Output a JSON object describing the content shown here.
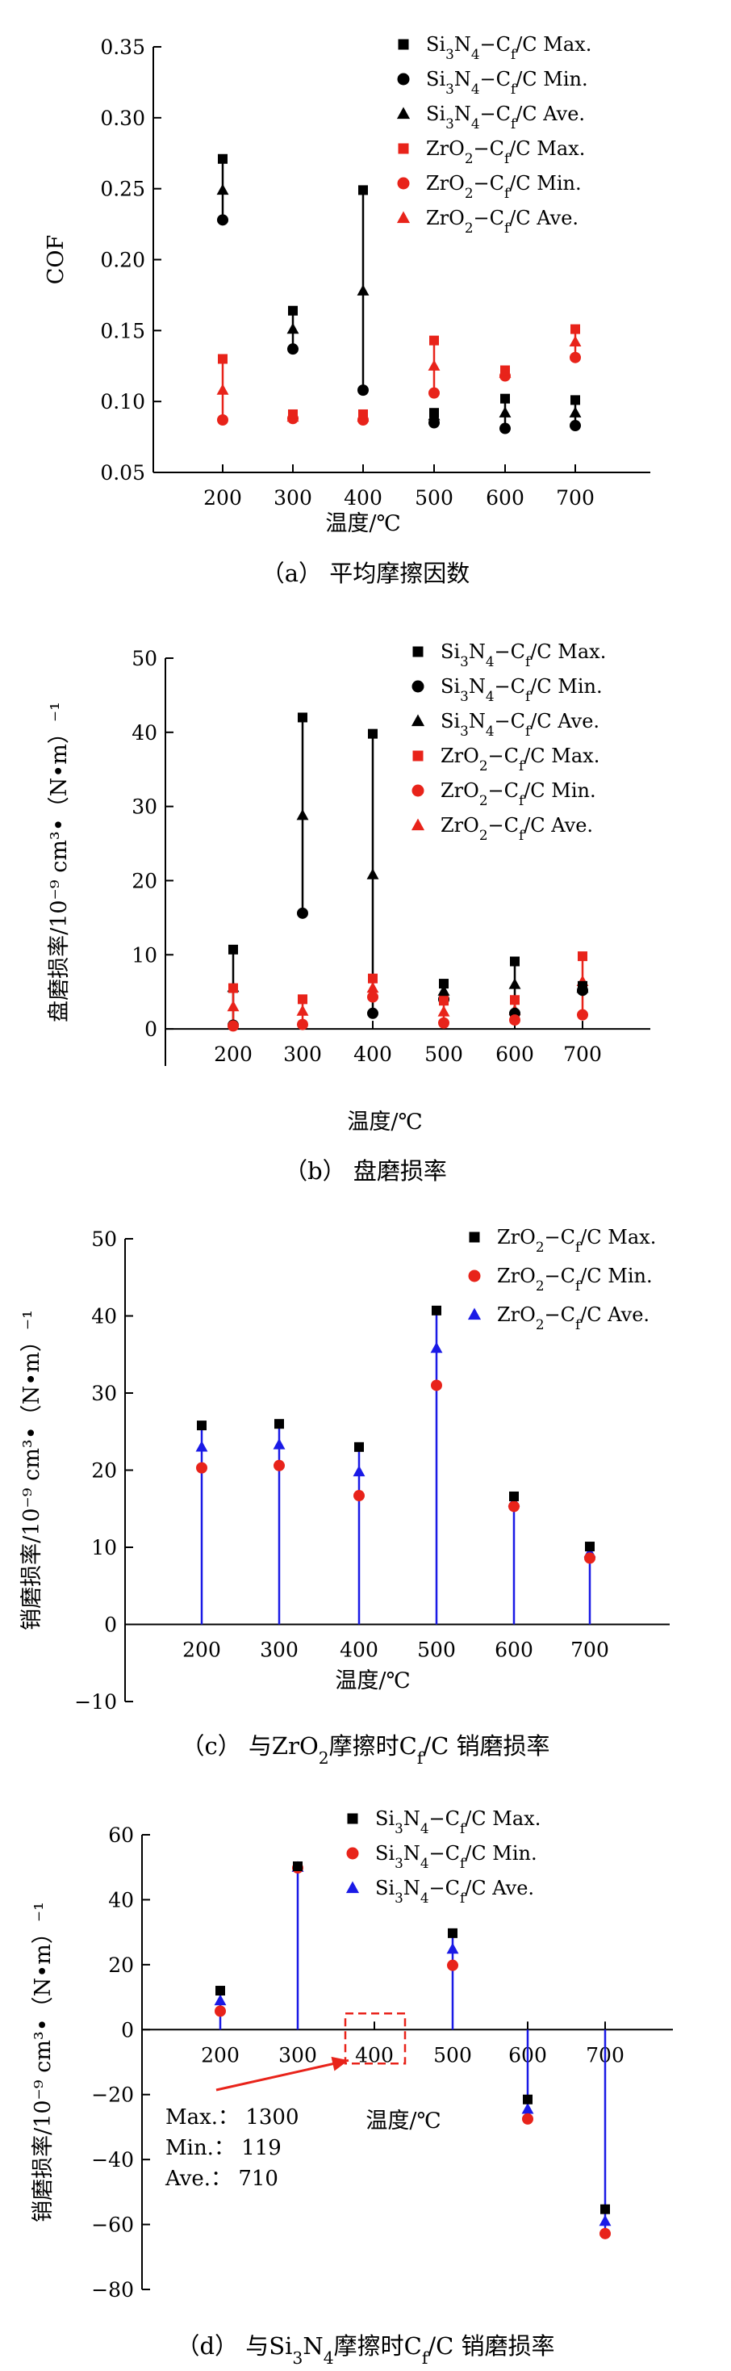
{
  "chart_data": [
    {
      "id": "a",
      "type": "scatter",
      "caption": "（a）  平均摩擦因数",
      "xlabel": "温度/℃",
      "ylabel": "COF",
      "categories": [
        "200",
        "300",
        "400",
        "500",
        "600",
        "700"
      ],
      "ylim": [
        0.05,
        0.35
      ],
      "yticks": [
        "0.05",
        "0.10",
        "0.15",
        "0.20",
        "0.25",
        "0.30",
        "0.35"
      ],
      "legend_position": "top-right",
      "series": [
        {
          "name": "Si₃N₄−C_f/C Max.",
          "marker": "square",
          "color": "#000000",
          "values": [
            0.271,
            0.164,
            0.249,
            0.092,
            0.102,
            0.101
          ]
        },
        {
          "name": "Si₃N₄−C_f/C Min.",
          "marker": "circle",
          "color": "#000000",
          "values": [
            0.228,
            0.137,
            0.108,
            0.085,
            0.081,
            0.083
          ]
        },
        {
          "name": "Si₃N₄−C_f/C Ave.",
          "marker": "triangle",
          "color": "#000000",
          "values": [
            0.249,
            0.151,
            0.178,
            0.09,
            0.092,
            0.092
          ]
        },
        {
          "name": "ZrO₂−C_f/C Max.",
          "marker": "square",
          "color": "#e8231a",
          "values": [
            0.13,
            0.091,
            0.091,
            0.143,
            0.122,
            0.151
          ]
        },
        {
          "name": "ZrO₂−C_f/C Min.",
          "marker": "circle",
          "color": "#e8231a",
          "values": [
            0.087,
            0.088,
            0.087,
            0.106,
            0.118,
            0.131
          ]
        },
        {
          "name": "ZrO₂−C_f/C Ave.",
          "marker": "triangle",
          "color": "#e8231a",
          "values": [
            0.108,
            0.089,
            0.089,
            0.125,
            0.12,
            0.142
          ]
        }
      ]
    },
    {
      "id": "b",
      "type": "scatter",
      "caption": "（b）  盘磨损率",
      "xlabel": "温度/℃",
      "ylabel": "盘磨损率/10⁻⁹ cm³•（N•m）⁻¹",
      "categories": [
        "200",
        "300",
        "400",
        "500",
        "600",
        "700"
      ],
      "ylim": [
        -5,
        50
      ],
      "yticks": [
        "0",
        "10",
        "20",
        "30",
        "40",
        "50"
      ],
      "legend_position": "top-right",
      "series": [
        {
          "name": "Si₃N₄−C_f/C Max.",
          "marker": "square",
          "color": "#000000",
          "values": [
            10.7,
            42.0,
            39.8,
            6.1,
            9.1,
            5.8
          ]
        },
        {
          "name": "Si₃N₄−C_f/C Min.",
          "marker": "circle",
          "color": "#000000",
          "values": [
            0.5,
            15.6,
            2.1,
            4.0,
            2.1,
            5.2
          ]
        },
        {
          "name": "Si₃N₄−C_f/C Ave.",
          "marker": "triangle",
          "color": "#000000",
          "values": [
            5.6,
            28.8,
            20.8,
            5.1,
            6.0,
            5.5
          ]
        },
        {
          "name": "ZrO₂−C_f/C Max.",
          "marker": "square",
          "color": "#e8231a",
          "values": [
            5.5,
            4.0,
            6.8,
            3.8,
            3.9,
            9.8
          ]
        },
        {
          "name": "ZrO₂−C_f/C Min.",
          "marker": "circle",
          "color": "#e8231a",
          "values": [
            0.4,
            0.6,
            4.3,
            0.8,
            1.2,
            1.9
          ]
        },
        {
          "name": "ZrO₂−C_f/C Ave.",
          "marker": "triangle",
          "color": "#e8231a",
          "values": [
            3.0,
            2.4,
            5.5,
            2.3,
            2.5,
            6.4
          ]
        }
      ]
    },
    {
      "id": "c",
      "type": "scatter",
      "caption": "（c）  与ZrO₂摩擦时C_f/C 销磨损率",
      "xlabel": "温度/℃",
      "ylabel": "销磨损率/10⁻⁹ cm³•（N•m）⁻¹",
      "categories": [
        "200",
        "300",
        "400",
        "500",
        "600",
        "700"
      ],
      "ylim": [
        -10,
        50
      ],
      "yticks": [
        "−10",
        "0",
        "10",
        "20",
        "30",
        "40",
        "50"
      ],
      "legend_position": "top-right",
      "series": [
        {
          "name": "ZrO₂−C_f/C Max.",
          "marker": "square",
          "color": "#000000",
          "values": [
            25.8,
            26.0,
            23.0,
            40.7,
            16.6,
            10.1
          ]
        },
        {
          "name": "ZrO₂−C_f/C Min.",
          "marker": "circle",
          "color": "#e8231a",
          "values": [
            20.3,
            20.6,
            16.7,
            31.0,
            15.3,
            8.6
          ]
        },
        {
          "name": "ZrO₂−C_f/C Ave.",
          "marker": "triangle",
          "color": "#1a1ae6",
          "values": [
            23.0,
            23.3,
            19.8,
            35.8,
            15.9,
            9.3
          ]
        }
      ]
    },
    {
      "id": "d",
      "type": "scatter",
      "caption": "（d）  与Si₃N₄摩擦时C_f/C 销磨损率",
      "xlabel": "温度/℃",
      "ylabel": "销磨损率/10⁻⁹ cm³•（N•m）⁻¹",
      "categories": [
        "200",
        "300",
        "400",
        "500",
        "600",
        "700"
      ],
      "ylim": [
        -80,
        60
      ],
      "yticks": [
        "−80",
        "−60",
        "−40",
        "−20",
        "0",
        "20",
        "40",
        "60"
      ],
      "legend_position": "top-center",
      "series": [
        {
          "name": "Si₃N₄−C_f/C Max.",
          "marker": "square",
          "color": "#000000",
          "values": [
            12.0,
            50.3,
            null,
            29.7,
            -21.5,
            -55.3
          ]
        },
        {
          "name": "Si₃N₄−C_f/C Min.",
          "marker": "circle",
          "color": "#e8231a",
          "values": [
            5.7,
            49.8,
            null,
            19.8,
            -27.5,
            -62.8
          ]
        },
        {
          "name": "Si₃N₄−C_f/C Ave.",
          "marker": "triangle",
          "color": "#1a1ae6",
          "values": [
            8.9,
            50.0,
            null,
            24.8,
            -24.5,
            -59.0
          ]
        }
      ],
      "annotation": {
        "target_category": "400",
        "lines": [
          "Max.：  1300",
          "Min.：  119",
          "Ave.：  710"
        ],
        "arrow_color": "#e8231a"
      }
    }
  ]
}
